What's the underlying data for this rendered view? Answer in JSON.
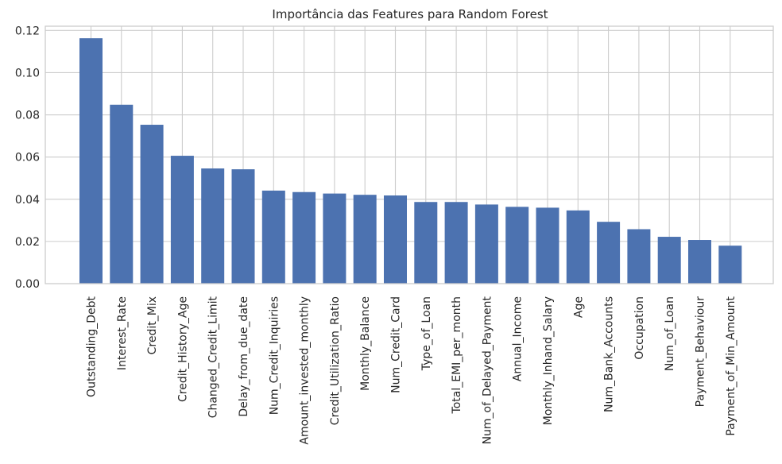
{
  "chart_data": {
    "type": "bar",
    "title": "Importância das Features para Random Forest",
    "xlabel": "",
    "ylabel": "",
    "ylim": [
      0,
      0.122
    ],
    "yticks": [
      "0.00",
      "0.02",
      "0.04",
      "0.06",
      "0.08",
      "0.10",
      "0.12"
    ],
    "grid": true,
    "bar_color": "#4c72b0",
    "categories": [
      "Outstanding_Debt",
      "Interest_Rate",
      "Credit_Mix",
      "Credit_History_Age",
      "Changed_Credit_Limit",
      "Delay_from_due_date",
      "Num_Credit_Inquiries",
      "Amount_invested_monthly",
      "Credit_Utilization_Ratio",
      "Monthly_Balance",
      "Num_Credit_Card",
      "Type_of_Loan",
      "Total_EMI_per_month",
      "Num_of_Delayed_Payment",
      "Annual_Income",
      "Monthly_Inhand_Salary",
      "Age",
      "Num_Bank_Accounts",
      "Occupation",
      "Num_of_Loan",
      "Payment_Behaviour",
      "Payment_of_Min_Amount"
    ],
    "values": [
      0.1163,
      0.0848,
      0.0753,
      0.0606,
      0.0546,
      0.0542,
      0.0441,
      0.0434,
      0.0427,
      0.0421,
      0.0418,
      0.0387,
      0.0387,
      0.0375,
      0.0364,
      0.036,
      0.0347,
      0.0293,
      0.0258,
      0.0222,
      0.0207,
      0.018
    ]
  }
}
